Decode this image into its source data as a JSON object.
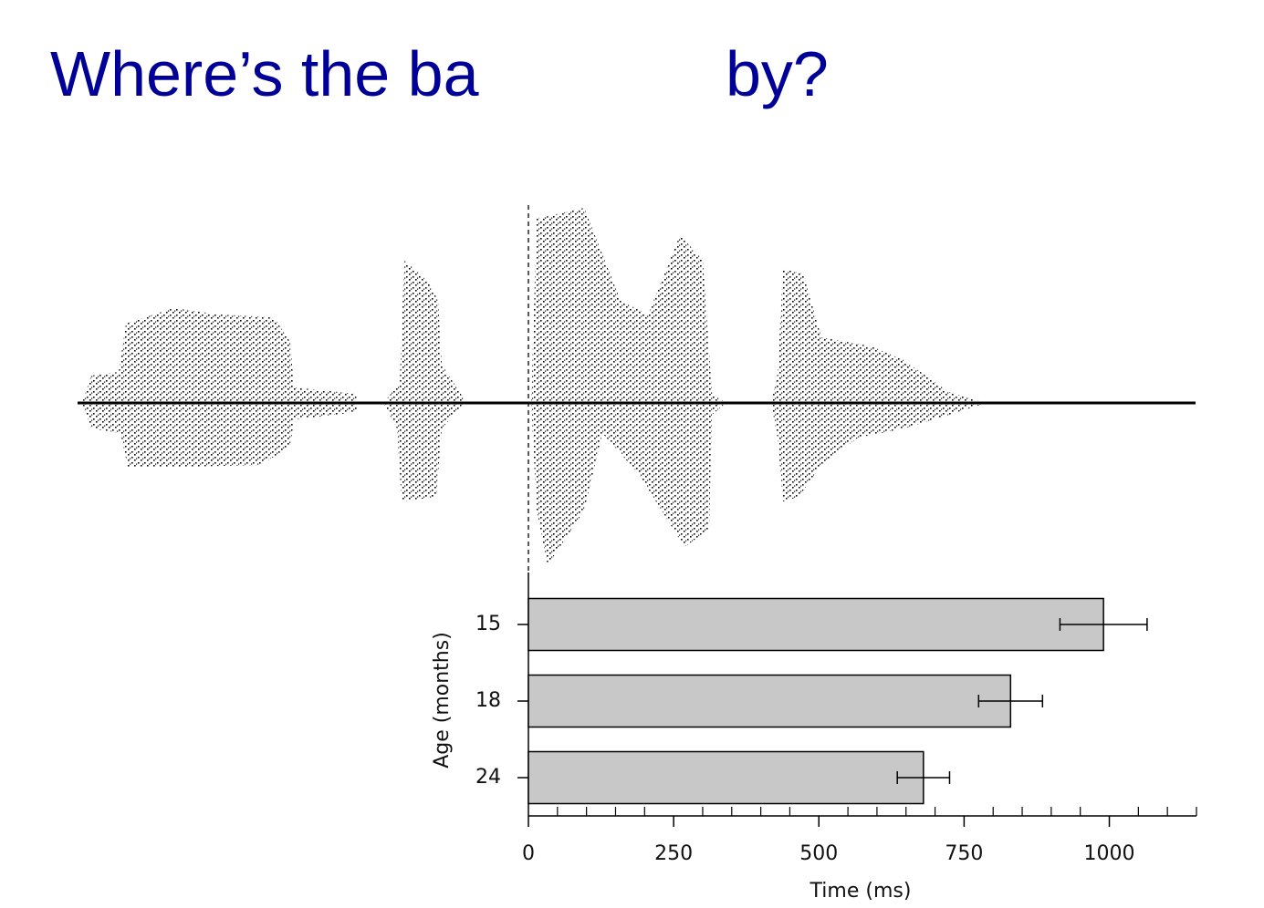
{
  "slide": {
    "title_start": "Where’s the ba",
    "title_end": "by?"
  },
  "chart_data": {
    "type": "hbar",
    "categories": [
      "15",
      "18",
      "24"
    ],
    "values": [
      990,
      830,
      680
    ],
    "errors": [
      75,
      55,
      45
    ],
    "color": "#c8c8c8",
    "xlabel": "Time (ms)",
    "ylabel": "Age (months)",
    "xlim": [
      0,
      1150
    ],
    "xticks": [
      0,
      250,
      500,
      750,
      1000
    ],
    "xminorticks": [
      50,
      100,
      150,
      200,
      300,
      350,
      400,
      450,
      550,
      600,
      650,
      700,
      800,
      850,
      900,
      950,
      1050,
      1100,
      1150
    ]
  }
}
